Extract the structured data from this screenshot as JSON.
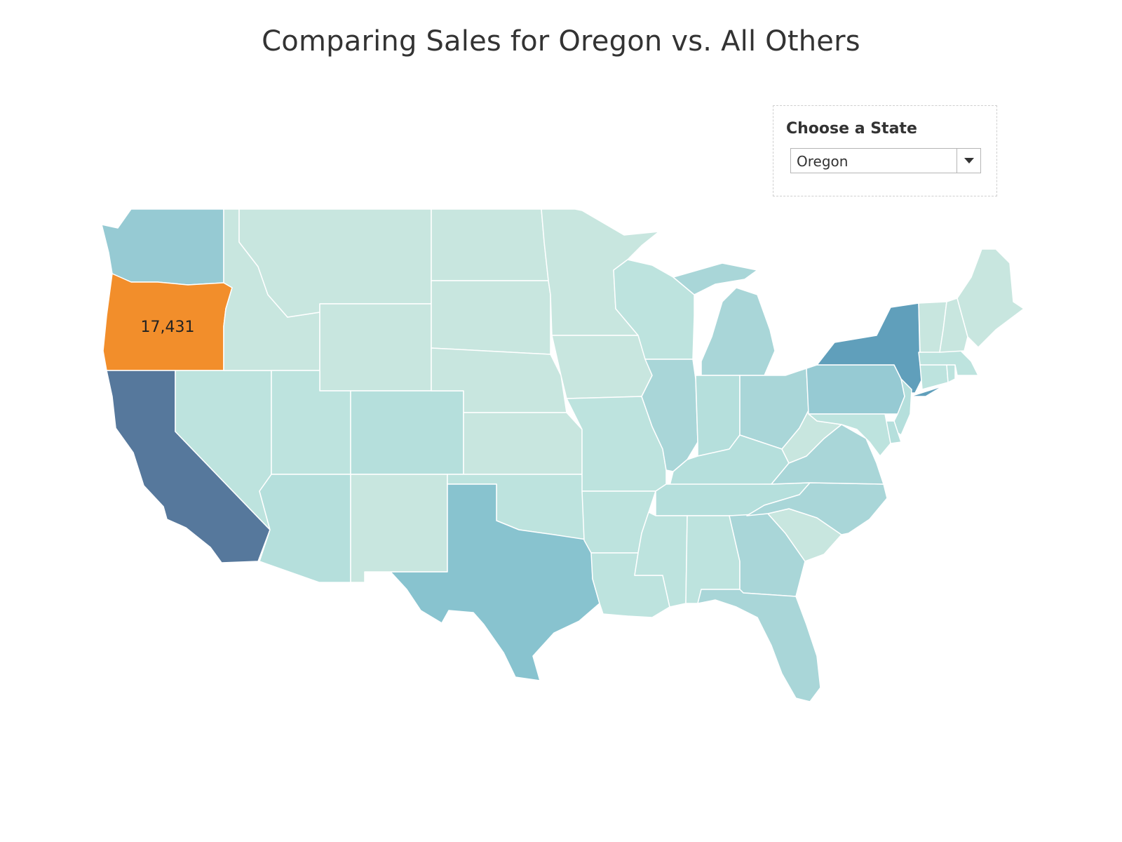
{
  "title": "Comparing Sales for Oregon vs. All Others",
  "filter": {
    "label": "Choose a State",
    "selected": "Oregon"
  },
  "highlight": {
    "state": "Oregon",
    "value_label": "17,431",
    "color": "#f28e2b"
  },
  "colors": {
    "background": "#ffffff",
    "border": "#ffffff",
    "palette": {
      "lightest": "#c8e6df",
      "light": "#bde3de",
      "light_mid": "#b5dfdc",
      "mid": "#a9d6d8",
      "mid_dark": "#96cad3",
      "dark": "#88c3cf",
      "darker": "#609fbb",
      "darkest": "#56789c"
    }
  },
  "states": [
    {
      "name": "Washington",
      "shade": "mid_dark"
    },
    {
      "name": "Oregon",
      "shade": "highlight"
    },
    {
      "name": "California",
      "shade": "darkest"
    },
    {
      "name": "Nevada",
      "shade": "light"
    },
    {
      "name": "Idaho",
      "shade": "lightest"
    },
    {
      "name": "Montana",
      "shade": "lightest"
    },
    {
      "name": "Wyoming",
      "shade": "lightest"
    },
    {
      "name": "Utah",
      "shade": "light"
    },
    {
      "name": "Arizona",
      "shade": "light_mid"
    },
    {
      "name": "Colorado",
      "shade": "light_mid"
    },
    {
      "name": "New Mexico",
      "shade": "lightest"
    },
    {
      "name": "North Dakota",
      "shade": "lightest"
    },
    {
      "name": "South Dakota",
      "shade": "lightest"
    },
    {
      "name": "Nebraska",
      "shade": "lightest"
    },
    {
      "name": "Kansas",
      "shade": "lightest"
    },
    {
      "name": "Oklahoma",
      "shade": "light"
    },
    {
      "name": "Texas",
      "shade": "dark"
    },
    {
      "name": "Minnesota",
      "shade": "lightest"
    },
    {
      "name": "Iowa",
      "shade": "lightest"
    },
    {
      "name": "Missouri",
      "shade": "light"
    },
    {
      "name": "Arkansas",
      "shade": "light"
    },
    {
      "name": "Louisiana",
      "shade": "light"
    },
    {
      "name": "Wisconsin",
      "shade": "light"
    },
    {
      "name": "Illinois",
      "shade": "mid"
    },
    {
      "name": "Michigan",
      "shade": "mid"
    },
    {
      "name": "Indiana",
      "shade": "light_mid"
    },
    {
      "name": "Ohio",
      "shade": "mid"
    },
    {
      "name": "Kentucky",
      "shade": "light_mid"
    },
    {
      "name": "Tennessee",
      "shade": "light_mid"
    },
    {
      "name": "Mississippi",
      "shade": "light"
    },
    {
      "name": "Alabama",
      "shade": "light"
    },
    {
      "name": "Georgia",
      "shade": "mid"
    },
    {
      "name": "Florida",
      "shade": "mid"
    },
    {
      "name": "South Carolina",
      "shade": "lightest"
    },
    {
      "name": "North Carolina",
      "shade": "mid"
    },
    {
      "name": "Virginia",
      "shade": "mid"
    },
    {
      "name": "West Virginia",
      "shade": "lightest"
    },
    {
      "name": "Pennsylvania",
      "shade": "mid_dark"
    },
    {
      "name": "New York",
      "shade": "darker"
    },
    {
      "name": "New Jersey",
      "shade": "light_mid"
    },
    {
      "name": "Delaware",
      "shade": "light_mid"
    },
    {
      "name": "Maryland",
      "shade": "light"
    },
    {
      "name": "Connecticut",
      "shade": "light"
    },
    {
      "name": "Rhode Island",
      "shade": "light"
    },
    {
      "name": "Massachusetts",
      "shade": "light"
    },
    {
      "name": "Vermont",
      "shade": "lightest"
    },
    {
      "name": "New Hampshire",
      "shade": "lightest"
    },
    {
      "name": "Maine",
      "shade": "lightest"
    }
  ]
}
